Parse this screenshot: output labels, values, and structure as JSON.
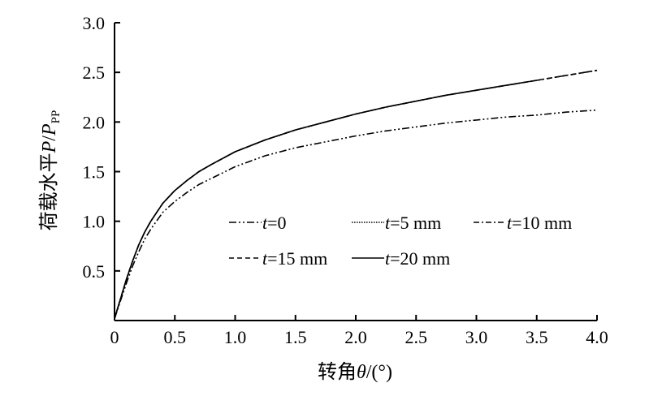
{
  "chart_data": {
    "type": "line",
    "xlabel_prefix": "转角",
    "xlabel_symbol": "θ",
    "xlabel_suffix": "/(°)",
    "ylabel_prefix": "荷载水平",
    "ylabel_P": "P",
    "ylabel_slash": "/",
    "ylabel_P2": "P",
    "ylabel_sub": "PP",
    "xlim": [
      0,
      4.0
    ],
    "ylim": [
      0,
      3.0
    ],
    "x_ticks": [
      "0",
      "0.5",
      "1.0",
      "1.5",
      "2.0",
      "2.5",
      "3.0",
      "3.5",
      "4.0"
    ],
    "y_ticks": [
      "0.5",
      "1.0",
      "1.5",
      "2.0",
      "2.5",
      "3.0"
    ],
    "grid": false,
    "legend_position": "center-right",
    "series": [
      {
        "name": "t=0",
        "name_var": "t",
        "name_rest": "=0",
        "style": "dashdotdot",
        "x": [
          0,
          0.05,
          0.1,
          0.15,
          0.2,
          0.25,
          0.3,
          0.4,
          0.5,
          0.6,
          0.7,
          0.8,
          1.0,
          1.25,
          1.5,
          1.75,
          2.0,
          2.25,
          2.5,
          2.75,
          3.0,
          3.25,
          3.5,
          3.75,
          4.0
        ],
        "y": [
          0.02,
          0.2,
          0.38,
          0.55,
          0.69,
          0.82,
          0.92,
          1.09,
          1.2,
          1.29,
          1.37,
          1.43,
          1.55,
          1.66,
          1.74,
          1.8,
          1.86,
          1.91,
          1.95,
          1.99,
          2.02,
          2.05,
          2.07,
          2.1,
          2.12
        ]
      },
      {
        "name": "t=5 mm",
        "name_var": "t",
        "name_rest": "=5 mm",
        "style": "dotted",
        "x": [
          0,
          0.05,
          0.1,
          0.15,
          0.2,
          0.25,
          0.3,
          0.4,
          0.5,
          0.6,
          0.7,
          0.8,
          1.0,
          1.25,
          1.5,
          1.75,
          2.0,
          2.25,
          2.5,
          2.75
        ],
        "y": [
          0.02,
          0.22,
          0.42,
          0.6,
          0.76,
          0.89,
          1.0,
          1.18,
          1.31,
          1.41,
          1.5,
          1.57,
          1.7,
          1.82,
          1.92,
          2.0,
          2.08,
          2.15,
          2.21,
          2.27
        ]
      },
      {
        "name": "t=10 mm",
        "name_var": "t",
        "name_rest": "=10 mm",
        "style": "dashdot",
        "x": [
          0,
          0.05,
          0.1,
          0.15,
          0.2,
          0.25,
          0.3,
          0.4,
          0.5,
          0.6,
          0.7,
          0.8,
          1.0,
          1.25,
          1.5,
          1.75,
          2.0,
          2.25,
          2.5,
          2.75,
          3.0,
          3.25,
          3.5,
          3.75,
          4.0
        ],
        "y": [
          0.02,
          0.22,
          0.42,
          0.6,
          0.76,
          0.89,
          1.0,
          1.18,
          1.31,
          1.41,
          1.5,
          1.57,
          1.7,
          1.82,
          1.92,
          2.0,
          2.08,
          2.15,
          2.21,
          2.27,
          2.32,
          2.37,
          2.42,
          2.47,
          2.52
        ]
      },
      {
        "name": "t=15 mm",
        "name_var": "t",
        "name_rest": "=15 mm",
        "style": "dashed",
        "x": [
          0,
          0.05,
          0.1,
          0.15,
          0.2,
          0.25,
          0.3,
          0.4,
          0.5,
          0.6,
          0.7,
          0.8,
          1.0,
          1.25,
          1.5,
          1.75,
          2.0,
          2.25,
          2.5,
          2.75,
          3.0,
          3.25,
          3.5,
          3.75,
          4.0
        ],
        "y": [
          0.02,
          0.22,
          0.42,
          0.6,
          0.76,
          0.89,
          1.0,
          1.18,
          1.31,
          1.41,
          1.5,
          1.57,
          1.7,
          1.82,
          1.92,
          2.0,
          2.08,
          2.15,
          2.21,
          2.27,
          2.32,
          2.37,
          2.42,
          2.47,
          2.52
        ]
      },
      {
        "name": "t=20 mm",
        "name_var": "t",
        "name_rest": "=20 mm",
        "style": "solid",
        "x": [
          0,
          0.05,
          0.1,
          0.15,
          0.2,
          0.25,
          0.3,
          0.4,
          0.5,
          0.6,
          0.7,
          0.8,
          1.0,
          1.25,
          1.5,
          1.75,
          2.0,
          2.25,
          2.5,
          2.75,
          3.0,
          3.25,
          3.5
        ],
        "y": [
          0.02,
          0.22,
          0.42,
          0.6,
          0.76,
          0.89,
          1.0,
          1.18,
          1.31,
          1.41,
          1.5,
          1.57,
          1.7,
          1.82,
          1.92,
          2.0,
          2.08,
          2.15,
          2.21,
          2.27,
          2.32,
          2.37,
          2.42
        ]
      }
    ]
  }
}
